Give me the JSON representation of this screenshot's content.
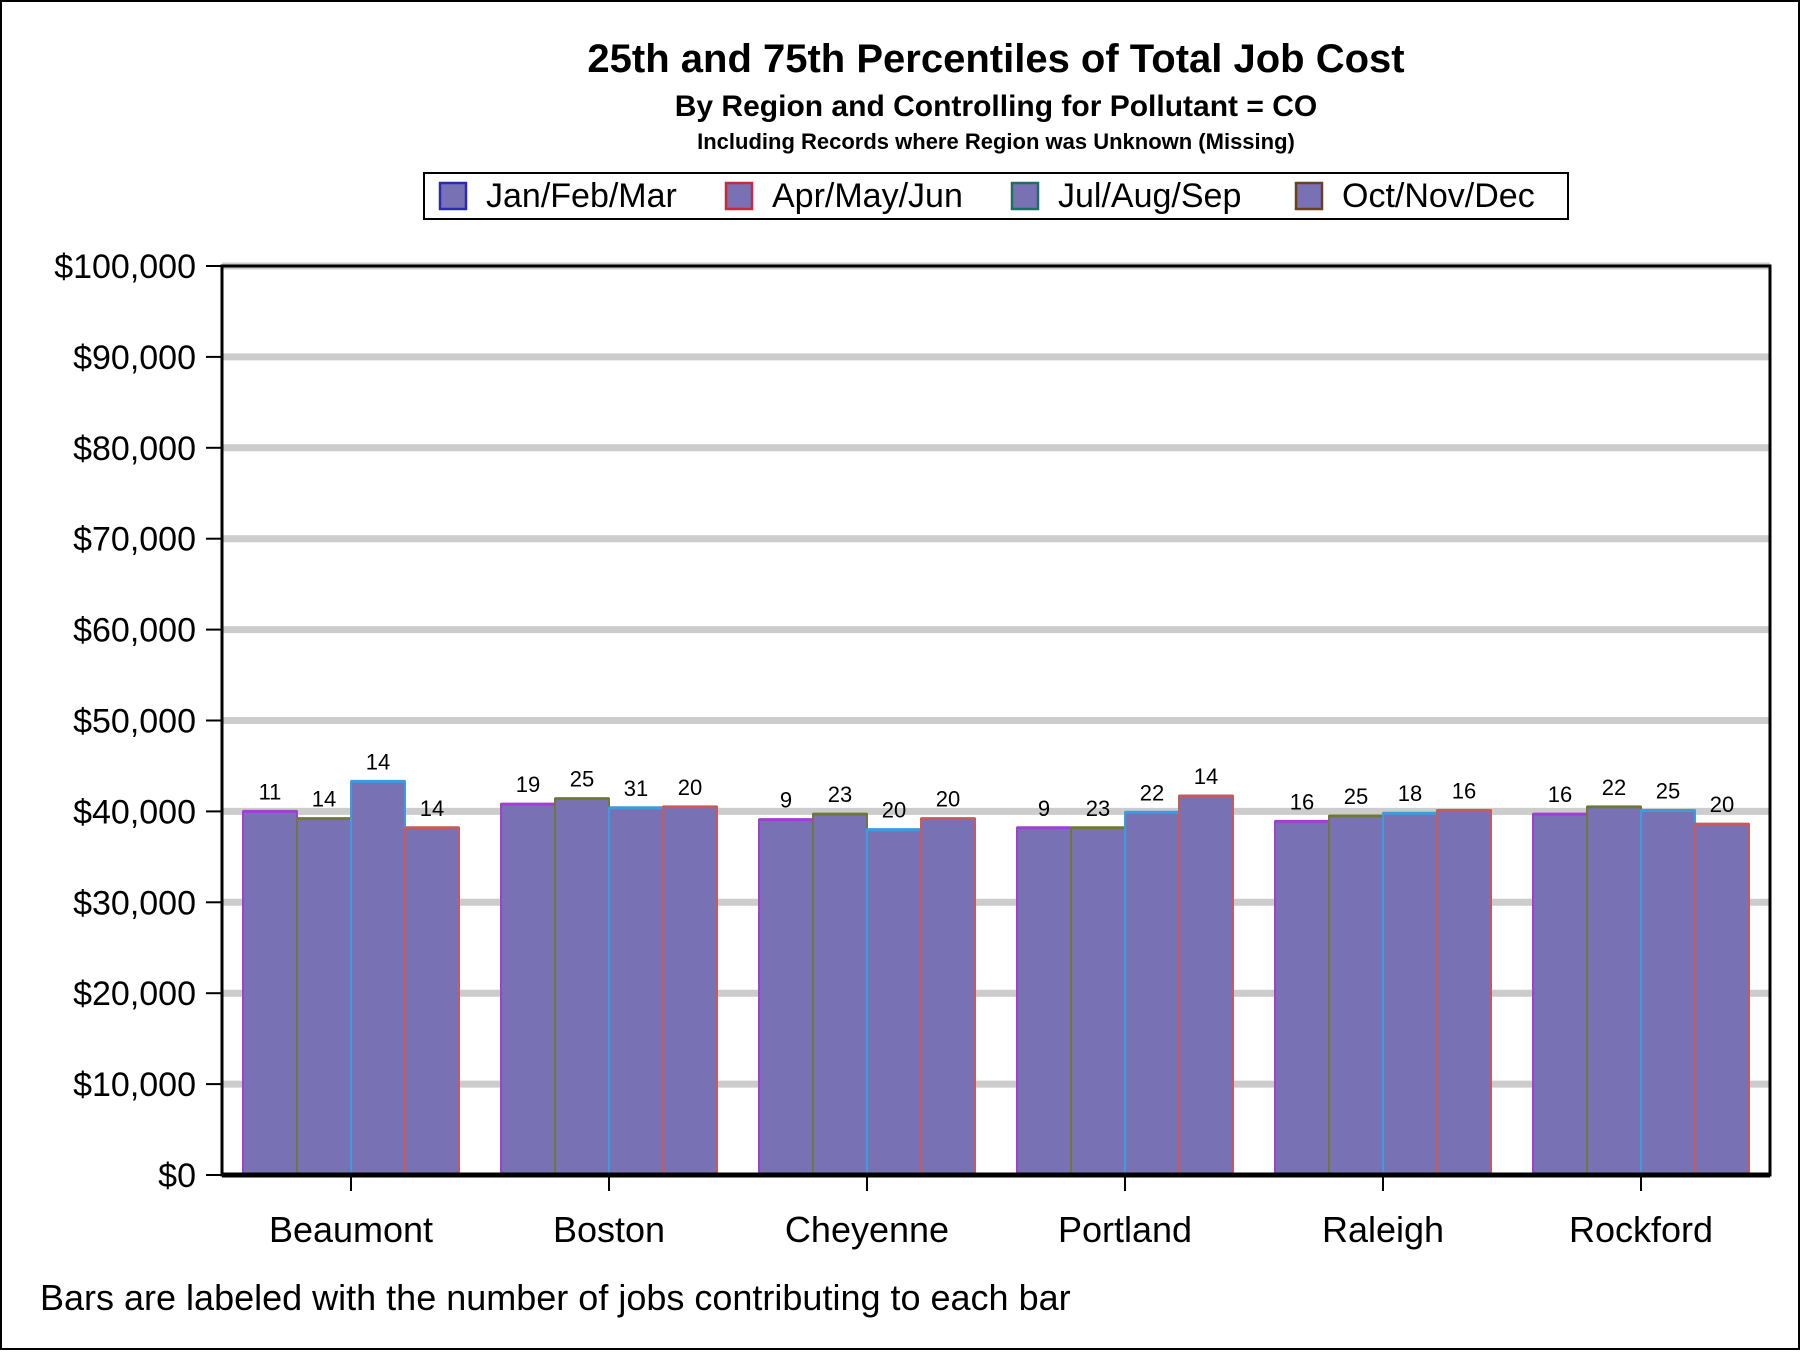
{
  "chart_data": {
    "type": "bar",
    "title": "25th and 75th Percentiles of Total Job Cost",
    "subtitle": "By Region and Controlling for Pollutant = CO",
    "subtitle2": "Including Records where Region was Unknown (Missing)",
    "footnote": "Bars are labeled with the number of jobs contributing to each bar",
    "xlabel": "",
    "ylabel": "",
    "ylim": [
      0,
      100000
    ],
    "yticks": [
      {
        "value": 0,
        "label": "$0"
      },
      {
        "value": 10000,
        "label": "$10,000"
      },
      {
        "value": 20000,
        "label": "$20,000"
      },
      {
        "value": 30000,
        "label": "$30,000"
      },
      {
        "value": 40000,
        "label": "$40,000"
      },
      {
        "value": 50000,
        "label": "$50,000"
      },
      {
        "value": 60000,
        "label": "$60,000"
      },
      {
        "value": 70000,
        "label": "$70,000"
      },
      {
        "value": 80000,
        "label": "$80,000"
      },
      {
        "value": 90000,
        "label": "$90,000"
      },
      {
        "value": 100000,
        "label": "$100,000"
      }
    ],
    "grid": true,
    "legend_position": "top",
    "categories": [
      "Beaumont",
      "Boston",
      "Cheyenne",
      "Portland",
      "Raleigh",
      "Rockford"
    ],
    "bar_fill": "#7872b5",
    "series": [
      {
        "name": "Jan/Feb/Mar",
        "legend_border": "#2a2ab5",
        "bar_border": "#a040d0",
        "values": [
          40000,
          40800,
          39100,
          38200,
          38900,
          39700
        ],
        "counts": [
          11,
          19,
          9,
          9,
          16,
          16
        ]
      },
      {
        "name": "Apr/May/Jun",
        "legend_border": "#c8283c",
        "bar_border": "#707838",
        "values": [
          39200,
          41400,
          39700,
          38200,
          39500,
          40500
        ],
        "counts": [
          14,
          25,
          23,
          23,
          25,
          22
        ]
      },
      {
        "name": "Jul/Aug/Sep",
        "legend_border": "#1e6e64",
        "bar_border": "#3c9ce0",
        "values": [
          43300,
          40400,
          38000,
          39900,
          39800,
          40100
        ],
        "counts": [
          14,
          31,
          20,
          22,
          18,
          25
        ]
      },
      {
        "name": "Oct/Nov/Dec",
        "legend_border": "#6a4020",
        "bar_border": "#c85a5a",
        "values": [
          38200,
          40500,
          39200,
          41700,
          40100,
          38600
        ],
        "counts": [
          14,
          20,
          20,
          14,
          16,
          20
        ]
      }
    ]
  }
}
